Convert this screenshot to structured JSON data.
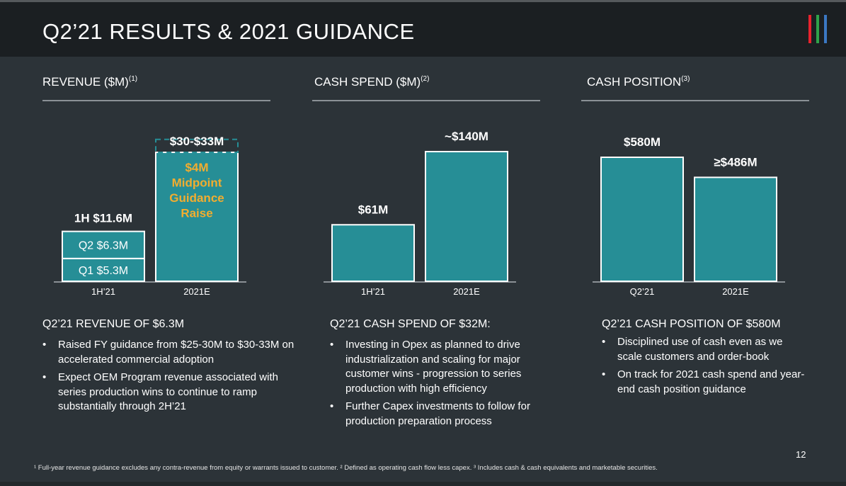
{
  "header": {
    "title": "Q2’21 RESULTS & 2021 GUIDANCE",
    "logo_colors": [
      "#e8222d",
      "#2fa34a",
      "#3b78c3"
    ]
  },
  "colors": {
    "bar_fill": "#268e96",
    "bar_stroke": "#ffffff",
    "highlight_text": "#f2ad2f",
    "axis": "#8b9196"
  },
  "sections": {
    "revenue": {
      "title": "REVENUE ($M)",
      "title_sup": "(1)",
      "heading": "Q2’21 REVENUE OF $6.3M",
      "bullets": [
        "Raised FY guidance from $25-30M to $30-33M on accelerated commercial adoption",
        "Expect OEM Program revenue associated with series production wins to continue to ramp substantially through 2H’21"
      ]
    },
    "cash_spend": {
      "title": "CASH SPEND ($M)",
      "title_sup": "(2)",
      "heading": "Q2’21 CASH SPEND OF $32M:",
      "bullets": [
        "Investing in Opex as planned to drive industrialization and scaling for major customer wins - progression to series production with high efficiency",
        "Further Capex investments to follow for production preparation process"
      ]
    },
    "cash_position": {
      "title": "CASH POSITION",
      "title_sup": "(3)",
      "heading": "Q2’21 CASH POSITION OF $580M",
      "bullets": [
        "Disciplined use of cash even as we scale customers and order-book",
        "On track for 2021 cash spend and year-end cash position guidance"
      ]
    }
  },
  "chart_data": [
    {
      "type": "bar",
      "title": "REVENUE ($M)",
      "categories": [
        "1H’21",
        "2021E"
      ],
      "stacked_segments": [
        {
          "category": "1H’21",
          "label": "Q1 $5.3M",
          "value": 5.3
        },
        {
          "category": "1H’21",
          "label": "Q2 $6.3M",
          "value": 6.3
        }
      ],
      "totals": [
        {
          "category": "1H’21",
          "label": "1H $11.6M",
          "value": 11.6
        },
        {
          "category": "2021E",
          "label": "$30-$33M",
          "value_low": 30,
          "value_high": 33
        }
      ],
      "annotation": [
        "$4M",
        "Midpoint",
        "Guidance",
        "Raise"
      ]
    },
    {
      "type": "bar",
      "title": "CASH SPEND ($M)",
      "categories": [
        "1H’21",
        "2021E"
      ],
      "values": [
        61,
        140
      ],
      "labels": [
        "$61M",
        "~$140M"
      ]
    },
    {
      "type": "bar",
      "title": "CASH POSITION",
      "categories": [
        "Q2’21",
        "2021E"
      ],
      "values": [
        580,
        486
      ],
      "labels": [
        "$580M",
        "≥$486M"
      ]
    }
  ],
  "page_number": "12",
  "footnote": "¹ Full-year revenue guidance excludes any contra-revenue from equity or warrants issued to customer. ² Defined as operating cash flow less capex. ³ Includes cash & cash equivalents and marketable securities."
}
